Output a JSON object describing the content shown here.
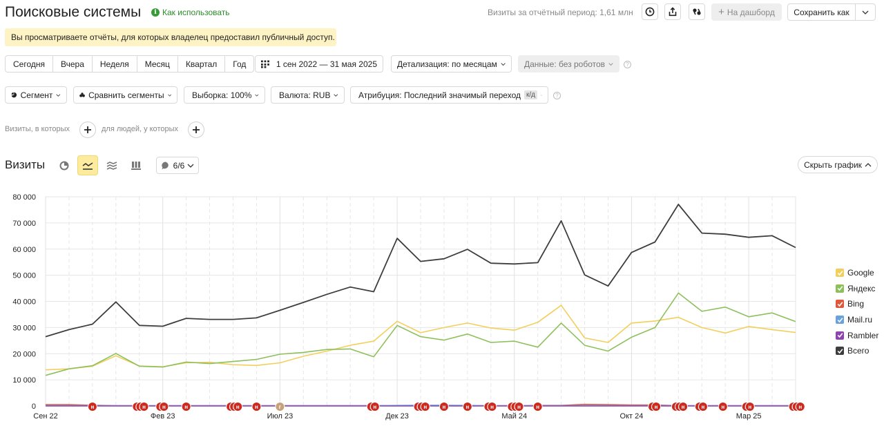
{
  "header": {
    "title": "Поисковые системы",
    "howto_label": "Как использовать",
    "visits_total": "Визиты за отчётный период: 1,61 млн",
    "dashboard_label": "На дашборд",
    "save_label": "Сохранить как"
  },
  "notice": "Вы просматриваете отчёты, для которых владелец предоставил публичный доступ.",
  "periods": [
    "Сегодня",
    "Вчера",
    "Неделя",
    "Месяц",
    "Квартал",
    "Год"
  ],
  "date_range": "1 сен 2022 — 31 мая 2025",
  "detail": "Детализация: по месяцам",
  "data_filter": "Данные: без роботов",
  "filters": {
    "segment": "Сегмент",
    "compare": "Сравнить сегменты",
    "sample": "Выборка: 100%",
    "currency": "Валюта: RUB",
    "attribution": "Атрибуция: Последний значимый переход",
    "attribution_badge": "к/д"
  },
  "conditions": {
    "visits_label": "Визиты, в которых",
    "people_label": "для людей, у которых"
  },
  "section": {
    "title": "Визиты",
    "counter": "6/6",
    "hide_chart": "Скрыть график"
  },
  "colors": {
    "google": "#f2cf5b",
    "yandex": "#8dc05b",
    "bing": "#e0583a",
    "mailru": "#6aa3dc",
    "rambler": "#8e44ad",
    "total": "#3d3d3d",
    "marker": "#cc2a1e",
    "marker_alt": "#c8a07a"
  },
  "chart_data": {
    "type": "line",
    "x": [
      "2022-09",
      "2022-10",
      "2022-11",
      "2022-12",
      "2023-01",
      "2023-02",
      "2023-03",
      "2023-04",
      "2023-05",
      "2023-06",
      "2023-07",
      "2023-08",
      "2023-09",
      "2023-10",
      "2023-11",
      "2023-12",
      "2024-01",
      "2024-02",
      "2024-03",
      "2024-04",
      "2024-05",
      "2024-06",
      "2024-07",
      "2024-08",
      "2024-09",
      "2024-10",
      "2024-11",
      "2024-12",
      "2025-01",
      "2025-02",
      "2025-03",
      "2025-04",
      "2025-05"
    ],
    "x_tick_labels": [
      "Сен 22",
      "Фев 23",
      "Июл 23",
      "Дек 23",
      "Май 24",
      "Окт 24",
      "Мар 25"
    ],
    "y_tick_labels": [
      "0",
      "10 000",
      "20 000",
      "30 000",
      "40 000",
      "50 000",
      "60 000",
      "70 000",
      "80 000"
    ],
    "ylim": [
      0,
      80000
    ],
    "grid": true,
    "legend_position": "right",
    "series": [
      {
        "name": "Google",
        "color_key": "google",
        "values": [
          13800,
          14200,
          15200,
          19200,
          15300,
          15000,
          16500,
          16700,
          15800,
          15500,
          16500,
          19000,
          21000,
          23200,
          24800,
          32400,
          28000,
          30000,
          31700,
          29800,
          29000,
          32000,
          38500,
          26000,
          24300,
          31700,
          32500,
          33900,
          30000,
          27900,
          30400,
          29200,
          28100
        ]
      },
      {
        "name": "Яндекс",
        "color_key": "yandex",
        "values": [
          11700,
          14200,
          15400,
          20100,
          15200,
          14900,
          16800,
          16200,
          17000,
          17800,
          19800,
          20500,
          21600,
          21800,
          18800,
          30800,
          26500,
          25200,
          27500,
          24300,
          24800,
          22500,
          31700,
          23200,
          21000,
          26300,
          30000,
          43200,
          36200,
          37800,
          34100,
          35600,
          32300
        ]
      },
      {
        "name": "Bing",
        "color_key": "bing",
        "values": [
          500,
          500,
          300,
          100,
          100,
          100,
          100,
          100,
          100,
          100,
          100,
          100,
          100,
          100,
          100,
          100,
          100,
          100,
          100,
          100,
          100,
          200,
          200,
          600,
          500,
          400,
          400,
          100,
          100,
          100,
          100,
          100,
          100
        ]
      },
      {
        "name": "Mail.ru",
        "color_key": "mailru",
        "values": [
          100,
          100,
          100,
          100,
          100,
          100,
          100,
          100,
          100,
          100,
          100,
          100,
          100,
          100,
          100,
          200,
          300,
          300,
          200,
          100,
          100,
          100,
          100,
          100,
          100,
          100,
          100,
          100,
          100,
          100,
          100,
          100,
          100
        ]
      },
      {
        "name": "Rambler",
        "color_key": "rambler",
        "values": [
          0,
          0,
          0,
          0,
          0,
          0,
          0,
          0,
          0,
          0,
          0,
          0,
          0,
          0,
          0,
          0,
          0,
          0,
          0,
          0,
          0,
          0,
          0,
          0,
          0,
          0,
          0,
          0,
          0,
          0,
          0,
          0,
          0
        ]
      },
      {
        "name": "Всего",
        "color_key": "total",
        "values": [
          26500,
          29200,
          31300,
          39800,
          30800,
          30500,
          33500,
          33100,
          33100,
          33700,
          36600,
          39600,
          42700,
          45500,
          43700,
          64100,
          55300,
          56300,
          59900,
          54600,
          54300,
          54800,
          70800,
          50100,
          45900,
          58700,
          62700,
          77100,
          66100,
          65700,
          64500,
          65100,
          60600
        ]
      }
    ],
    "annotations": [
      {
        "x": 2.0,
        "glyph": "н"
      },
      {
        "x": 3.9,
        "glyph": "н"
      },
      {
        "x": 4.05,
        "glyph": "н"
      },
      {
        "x": 4.2,
        "glyph": "н"
      },
      {
        "x": 4.9,
        "glyph": "н"
      },
      {
        "x": 5.05,
        "glyph": "н"
      },
      {
        "x": 6.0,
        "glyph": "н"
      },
      {
        "x": 7.9,
        "glyph": "н"
      },
      {
        "x": 8.05,
        "glyph": "н"
      },
      {
        "x": 8.2,
        "glyph": "н"
      },
      {
        "x": 9.0,
        "glyph": "н"
      },
      {
        "x": 10.0,
        "glyph": "г",
        "alt": true
      },
      {
        "x": 13.9,
        "glyph": "н"
      },
      {
        "x": 14.05,
        "glyph": "н"
      },
      {
        "x": 15.9,
        "glyph": "н"
      },
      {
        "x": 16.05,
        "glyph": "н"
      },
      {
        "x": 16.2,
        "glyph": "н"
      },
      {
        "x": 17.0,
        "glyph": "н"
      },
      {
        "x": 18.0,
        "glyph": "н"
      },
      {
        "x": 18.9,
        "glyph": "н"
      },
      {
        "x": 19.05,
        "glyph": "н"
      },
      {
        "x": 19.9,
        "glyph": "н"
      },
      {
        "x": 20.05,
        "glyph": "н"
      },
      {
        "x": 20.2,
        "glyph": "н"
      },
      {
        "x": 21.0,
        "glyph": "н"
      },
      {
        "x": 25.9,
        "glyph": "н"
      },
      {
        "x": 26.05,
        "glyph": "н"
      },
      {
        "x": 26.9,
        "glyph": "н"
      },
      {
        "x": 27.05,
        "glyph": "н"
      },
      {
        "x": 27.2,
        "glyph": "н"
      },
      {
        "x": 27.9,
        "glyph": "н"
      },
      {
        "x": 28.05,
        "glyph": "н"
      },
      {
        "x": 28.9,
        "glyph": "н"
      },
      {
        "x": 29.9,
        "glyph": "н"
      },
      {
        "x": 30.05,
        "glyph": "н"
      },
      {
        "x": 31.9,
        "glyph": "н"
      },
      {
        "x": 32.05,
        "glyph": "н"
      },
      {
        "x": 32.2,
        "glyph": "н"
      }
    ]
  }
}
